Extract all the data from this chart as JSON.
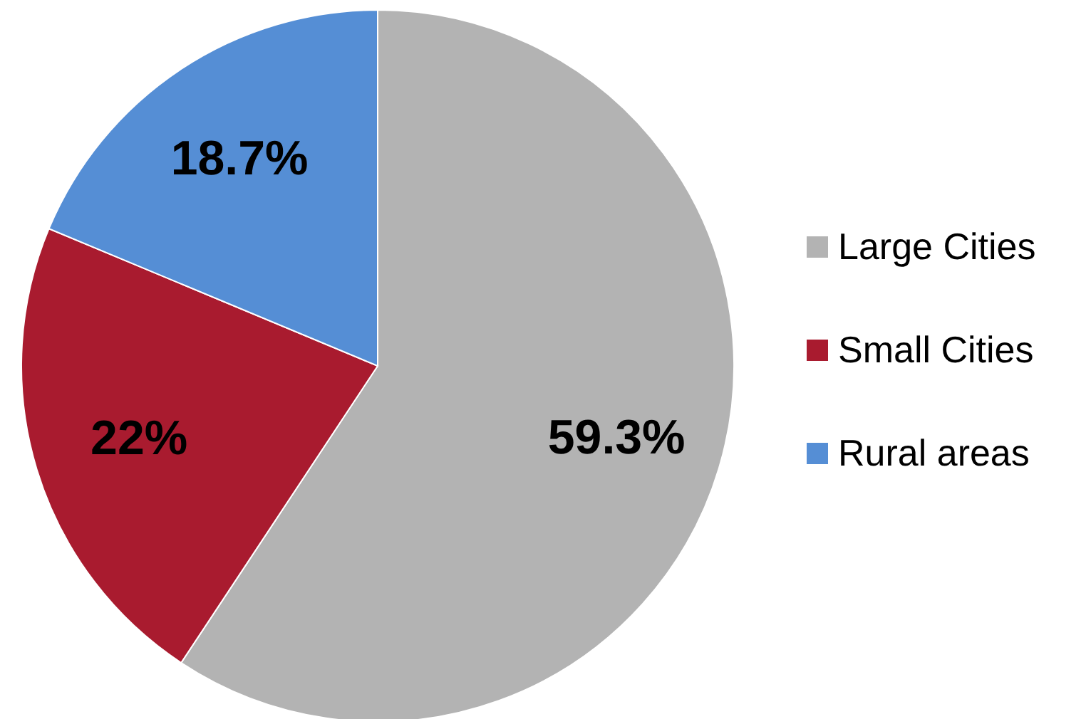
{
  "chart_data": {
    "type": "pie",
    "categories": [
      "Large Cities",
      "Small Cities",
      "Rural areas"
    ],
    "values": [
      59.3,
      22,
      18.7
    ],
    "value_labels": [
      "59.3%",
      "22%",
      "18.7%"
    ],
    "colors": [
      "#b3b3b3",
      "#a91b2f",
      "#558ed5"
    ],
    "legend": "right"
  }
}
